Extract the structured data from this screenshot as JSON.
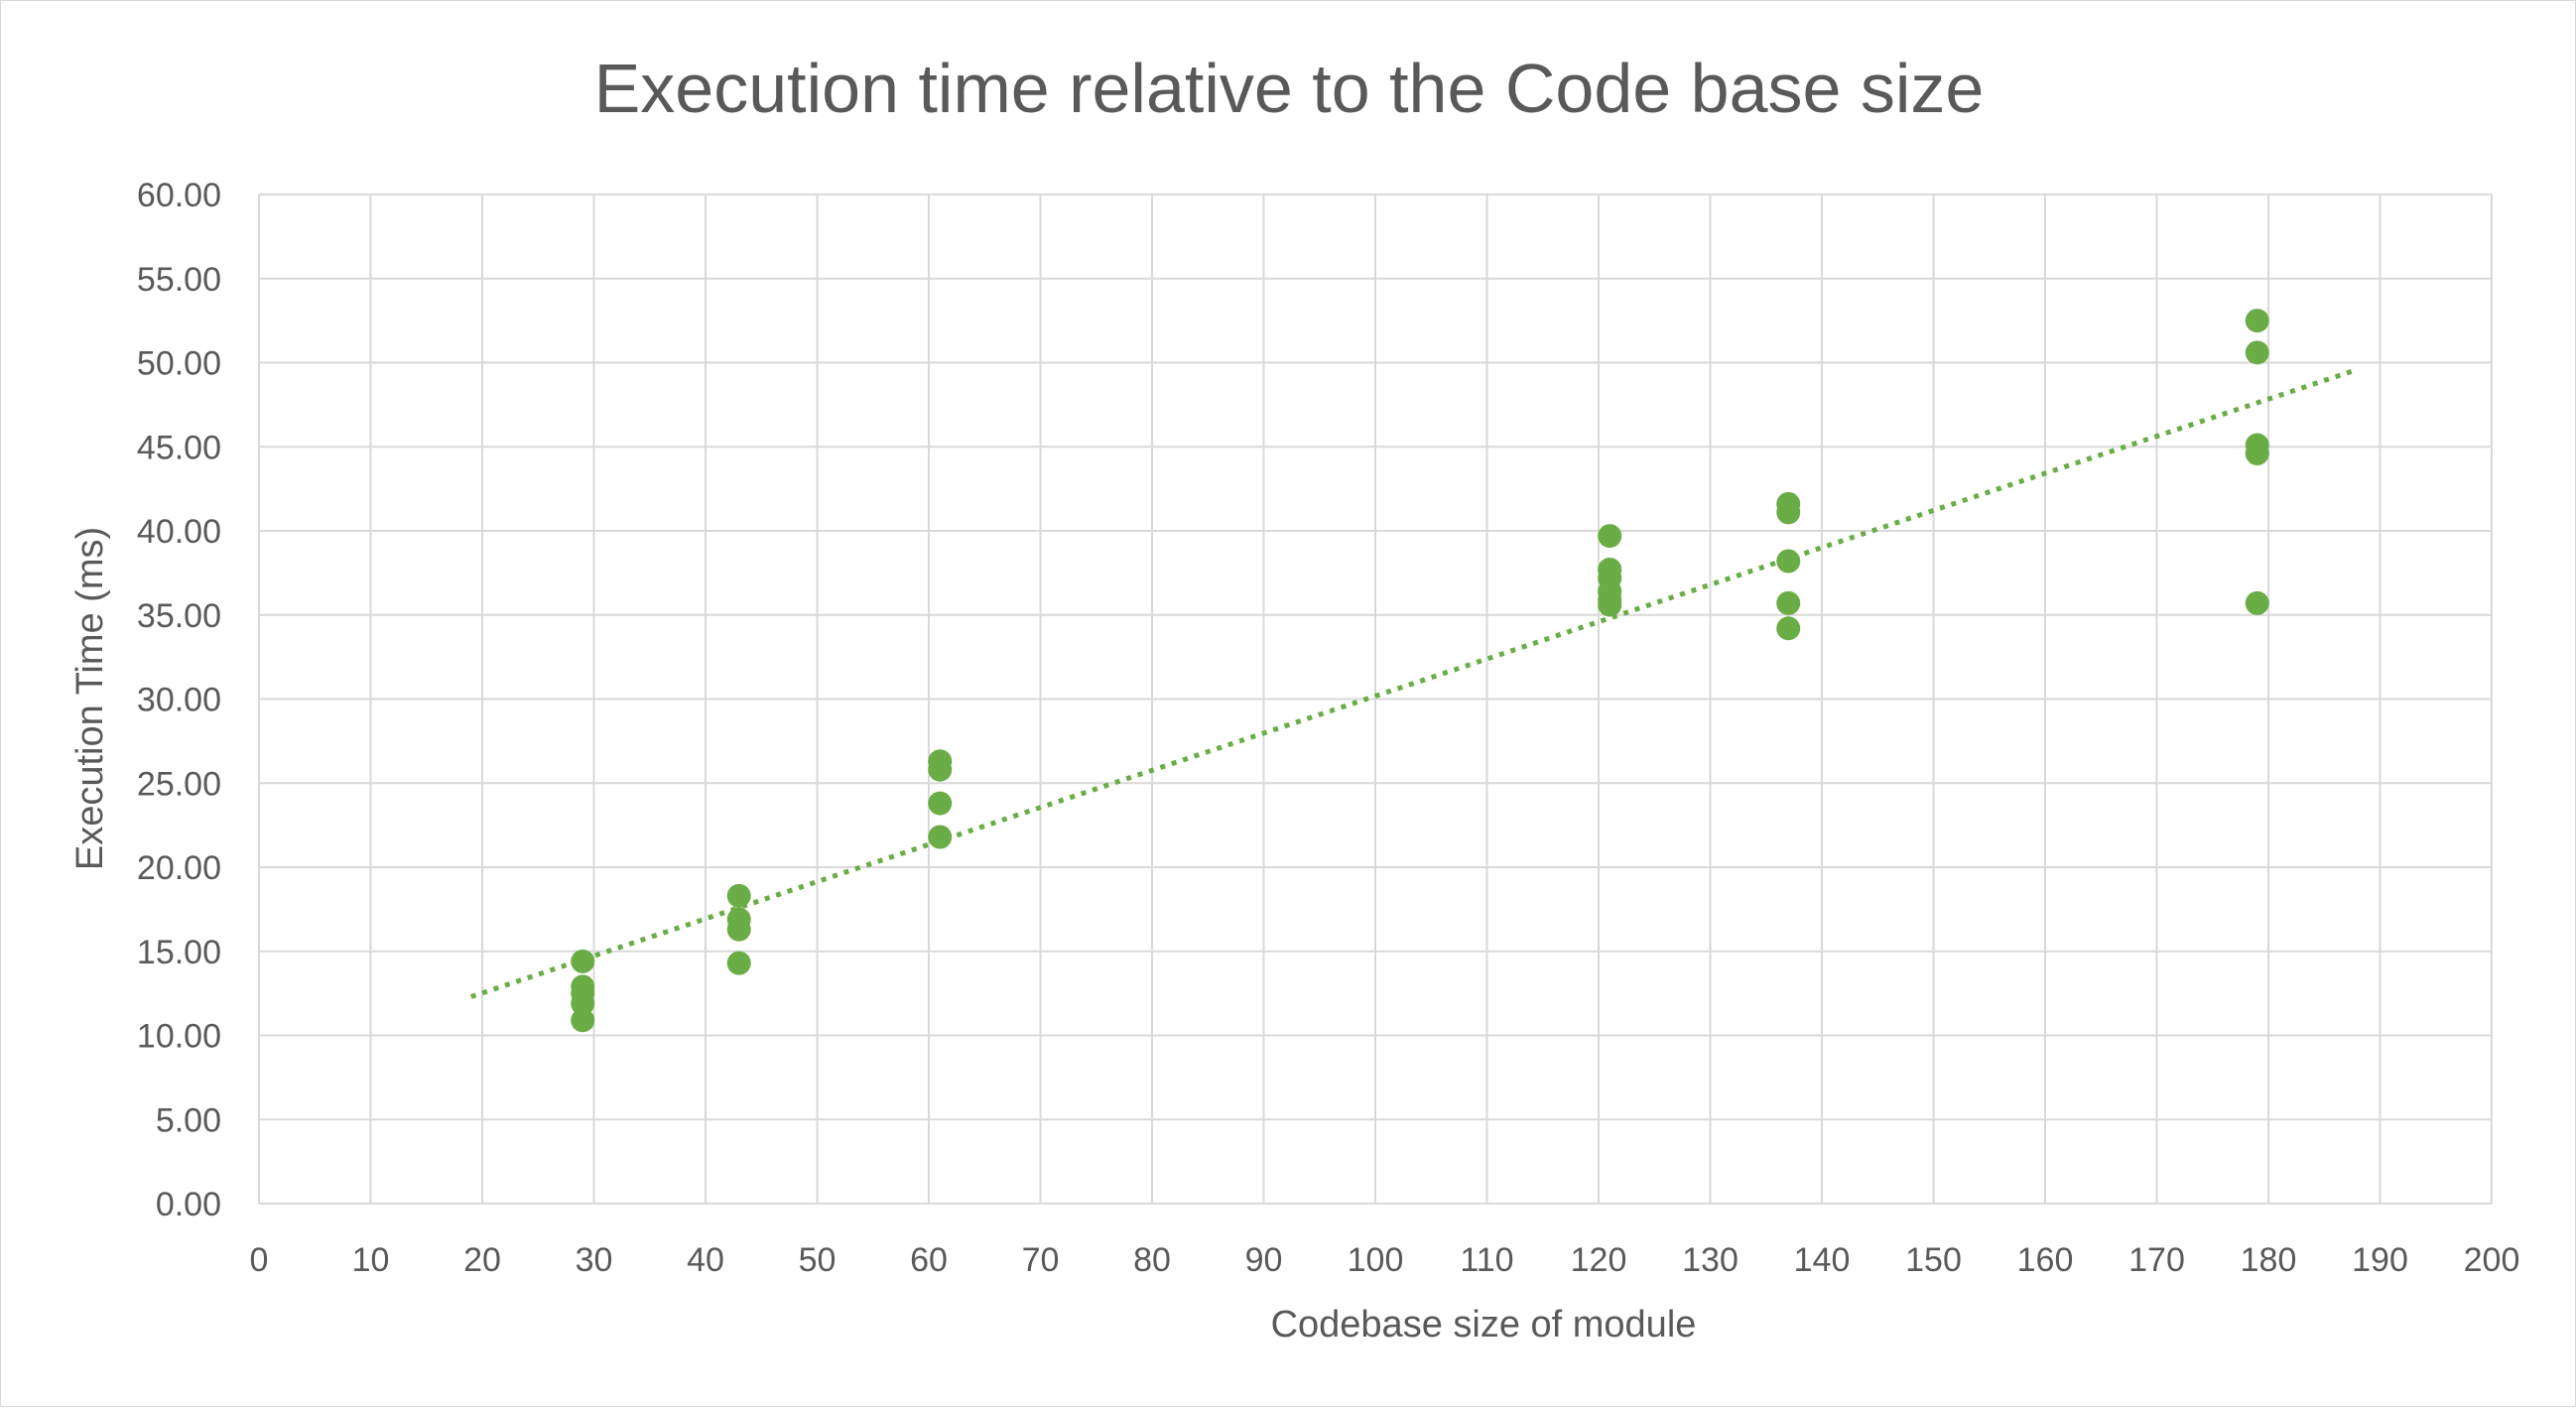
{
  "chart_data": {
    "type": "scatter",
    "title": "Execution time relative to the Code base size",
    "xlabel": "Codebase size of module",
    "ylabel": "Execution Time (ms)",
    "xlim": [
      0,
      200
    ],
    "ylim": [
      0,
      60
    ],
    "x_ticks": [
      0,
      10,
      20,
      30,
      40,
      50,
      60,
      70,
      80,
      90,
      100,
      110,
      120,
      130,
      140,
      150,
      160,
      170,
      180,
      190,
      200
    ],
    "y_ticks": [
      0,
      5,
      10,
      15,
      20,
      25,
      30,
      35,
      40,
      45,
      50,
      55,
      60
    ],
    "x_tick_labels": [
      "0",
      "10",
      "20",
      "30",
      "40",
      "50",
      "60",
      "70",
      "80",
      "90",
      "100",
      "110",
      "120",
      "130",
      "140",
      "150",
      "160",
      "170",
      "180",
      "190",
      "200"
    ],
    "y_tick_labels": [
      "0.00",
      "5.00",
      "10.00",
      "15.00",
      "20.00",
      "25.00",
      "30.00",
      "35.00",
      "40.00",
      "45.00",
      "50.00",
      "55.00",
      "60.00"
    ],
    "grid": true,
    "legend": "none",
    "color": "#6aac46",
    "points": [
      {
        "x": 29,
        "y": 14.4
      },
      {
        "x": 29,
        "y": 12.9
      },
      {
        "x": 29,
        "y": 12.5
      },
      {
        "x": 29,
        "y": 11.9
      },
      {
        "x": 29,
        "y": 10.9
      },
      {
        "x": 43,
        "y": 18.3
      },
      {
        "x": 43,
        "y": 16.9
      },
      {
        "x": 43,
        "y": 16.3
      },
      {
        "x": 43,
        "y": 14.3
      },
      {
        "x": 61,
        "y": 26.3
      },
      {
        "x": 61,
        "y": 25.8
      },
      {
        "x": 61,
        "y": 23.8
      },
      {
        "x": 61,
        "y": 21.8
      },
      {
        "x": 121,
        "y": 39.7
      },
      {
        "x": 121,
        "y": 37.7
      },
      {
        "x": 121,
        "y": 37.2
      },
      {
        "x": 121,
        "y": 36.4
      },
      {
        "x": 121,
        "y": 35.9
      },
      {
        "x": 121,
        "y": 35.6
      },
      {
        "x": 137,
        "y": 41.6
      },
      {
        "x": 137,
        "y": 41.1
      },
      {
        "x": 137,
        "y": 38.2
      },
      {
        "x": 137,
        "y": 35.7
      },
      {
        "x": 137,
        "y": 34.2
      },
      {
        "x": 179,
        "y": 52.5
      },
      {
        "x": 179,
        "y": 50.6
      },
      {
        "x": 179,
        "y": 45.1
      },
      {
        "x": 179,
        "y": 44.6
      },
      {
        "x": 179,
        "y": 35.7
      }
    ],
    "trendline": {
      "style": "dotted",
      "x": [
        19,
        188
      ],
      "y": [
        12.3,
        49.6
      ]
    }
  }
}
